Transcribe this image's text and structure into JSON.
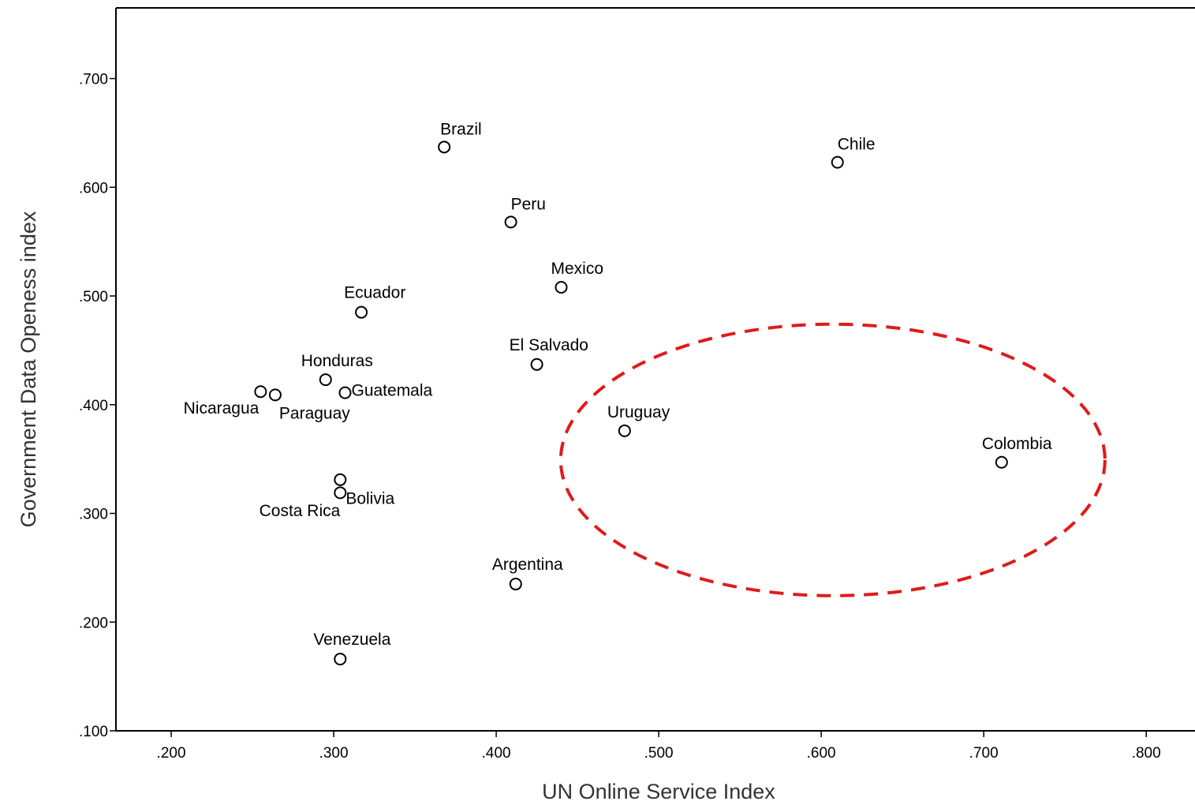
{
  "chart_data": {
    "type": "scatter",
    "title": "",
    "xlabel": "UN Online Service Index",
    "ylabel": "Government Data Openess index",
    "xlim": [
      0.166,
      0.83
    ],
    "ylim": [
      0.1,
      0.765
    ],
    "xticks": [
      0.2,
      0.3,
      0.4,
      0.5,
      0.6,
      0.7,
      0.8
    ],
    "xtick_labels": [
      ".200",
      ".300",
      ".400",
      ".500",
      ".600",
      ".700",
      ".800"
    ],
    "yticks": [
      0.1,
      0.2,
      0.3,
      0.4,
      0.5,
      0.6,
      0.7
    ],
    "ytick_labels": [
      ".100",
      ".200",
      ".300",
      ".400",
      ".500",
      ".600",
      ".700"
    ],
    "grid": false,
    "marker": "open-circle",
    "colors": {
      "marker": "#000000",
      "axis": "#000000",
      "highlight": "#e01b1b"
    },
    "points": [
      {
        "label": "Brazil",
        "x": 0.368,
        "y": 0.637
      },
      {
        "label": "Chile",
        "x": 0.61,
        "y": 0.623
      },
      {
        "label": "Peru",
        "x": 0.409,
        "y": 0.568
      },
      {
        "label": "Mexico",
        "x": 0.44,
        "y": 0.508
      },
      {
        "label": "Ecuador",
        "x": 0.317,
        "y": 0.485
      },
      {
        "label": "El Salvado",
        "x": 0.425,
        "y": 0.437
      },
      {
        "label": "Honduras",
        "x": 0.295,
        "y": 0.423
      },
      {
        "label": "Nicaragua",
        "x": 0.255,
        "y": 0.412
      },
      {
        "label": "Paraguay",
        "x": 0.264,
        "y": 0.409
      },
      {
        "label": "Guatemala",
        "x": 0.307,
        "y": 0.411
      },
      {
        "label": "Uruguay",
        "x": 0.479,
        "y": 0.376
      },
      {
        "label": "Colombia",
        "x": 0.711,
        "y": 0.347
      },
      {
        "label": "Costa Rica",
        "x": 0.304,
        "y": 0.331
      },
      {
        "label": "Bolivia",
        "x": 0.304,
        "y": 0.319
      },
      {
        "label": "Argentina",
        "x": 0.412,
        "y": 0.235
      },
      {
        "label": "Venezuela",
        "x": 0.304,
        "y": 0.166
      }
    ],
    "annotations": [
      {
        "type": "dashed-ellipse",
        "color": "#e01b1b",
        "encloses": [
          "Uruguay",
          "Colombia"
        ]
      }
    ]
  }
}
